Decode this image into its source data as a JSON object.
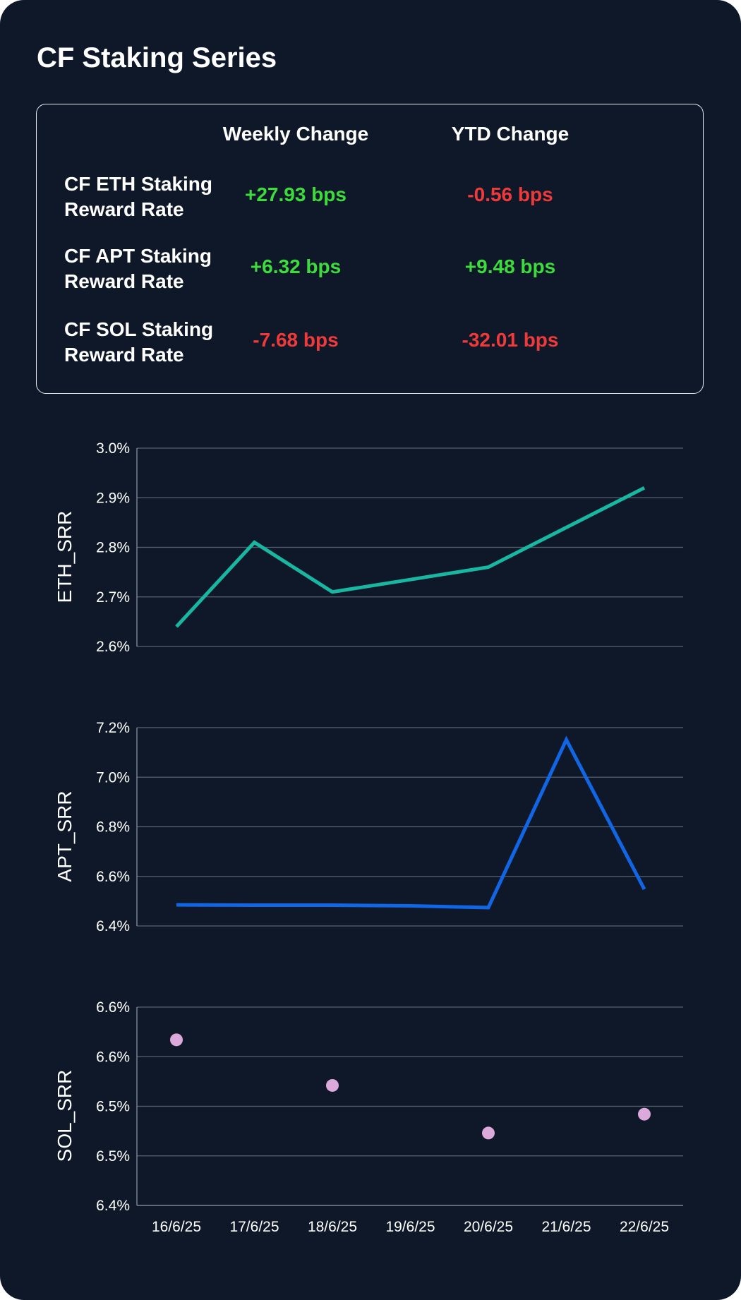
{
  "header": {
    "title": "CF Staking Series"
  },
  "summary_table": {
    "columns": [
      "Weekly Change",
      "YTD Change"
    ],
    "rows": [
      {
        "label": "CF ETH Staking Reward Rate",
        "weekly": "+27.93 bps",
        "ytd": "-0.56 bps"
      },
      {
        "label": "CF APT Staking Reward Rate",
        "weekly": "+6.32 bps",
        "ytd": "+9.48 bps"
      },
      {
        "label": "CF SOL Staking Reward Rate",
        "weekly": "-7.68 bps",
        "ytd": "-32.01 bps"
      }
    ],
    "positive_color": "#3ddc3d",
    "negative_color": "#f03a3a"
  },
  "chart_data": [
    {
      "type": "line",
      "ylabel": "ETH_SRR",
      "color": "#17b7a2",
      "ylim": [
        2.6,
        3.0
      ],
      "yticks": [
        3.0,
        2.9,
        2.8,
        2.7,
        2.6
      ],
      "yticklabels": [
        "3.0%",
        "2.9%",
        "2.8%",
        "2.7%",
        "2.6%"
      ],
      "x": [
        "16/6/25",
        "17/6/25",
        "18/6/25",
        "19/6/25",
        "20/6/25",
        "21/6/25",
        "22/6/25"
      ],
      "series": [
        {
          "values": [
            2.64,
            2.81,
            2.71,
            2.735,
            2.76,
            2.84,
            2.92
          ]
        }
      ],
      "grid": true
    },
    {
      "type": "line",
      "ylabel": "APT_SRR",
      "color": "#1166e6",
      "ylim": [
        6.4,
        7.2
      ],
      "yticks": [
        7.2,
        7.0,
        6.8,
        6.6,
        6.4
      ],
      "yticklabels": [
        "7.2%",
        "7.0%",
        "6.8%",
        "6.6%",
        "6.4%"
      ],
      "x": [
        "16/6/25",
        "17/6/25",
        "18/6/25",
        "19/6/25",
        "20/6/25",
        "21/6/25",
        "22/6/25"
      ],
      "series": [
        {
          "values": [
            6.485,
            6.484,
            6.484,
            6.481,
            6.474,
            7.151,
            6.548
          ]
        }
      ],
      "grid": true
    },
    {
      "type": "scatter",
      "ylabel": "SOL_SRR",
      "color": "#dbaadb",
      "ylim": [
        6.4,
        6.6
      ],
      "yticks": [
        6.6,
        6.55,
        6.5,
        6.45,
        6.4
      ],
      "yticklabels": [
        "6.6%",
        "6.6%",
        "6.5%",
        "6.5%",
        "6.4%"
      ],
      "x": [
        "16/6/25",
        "17/6/25",
        "18/6/25",
        "19/6/25",
        "20/6/25",
        "21/6/25",
        "22/6/25"
      ],
      "xlabels_shown": true,
      "series": [
        {
          "values": [
            6.567,
            null,
            6.521,
            null,
            6.473,
            null,
            6.492
          ]
        }
      ],
      "grid": true
    }
  ]
}
